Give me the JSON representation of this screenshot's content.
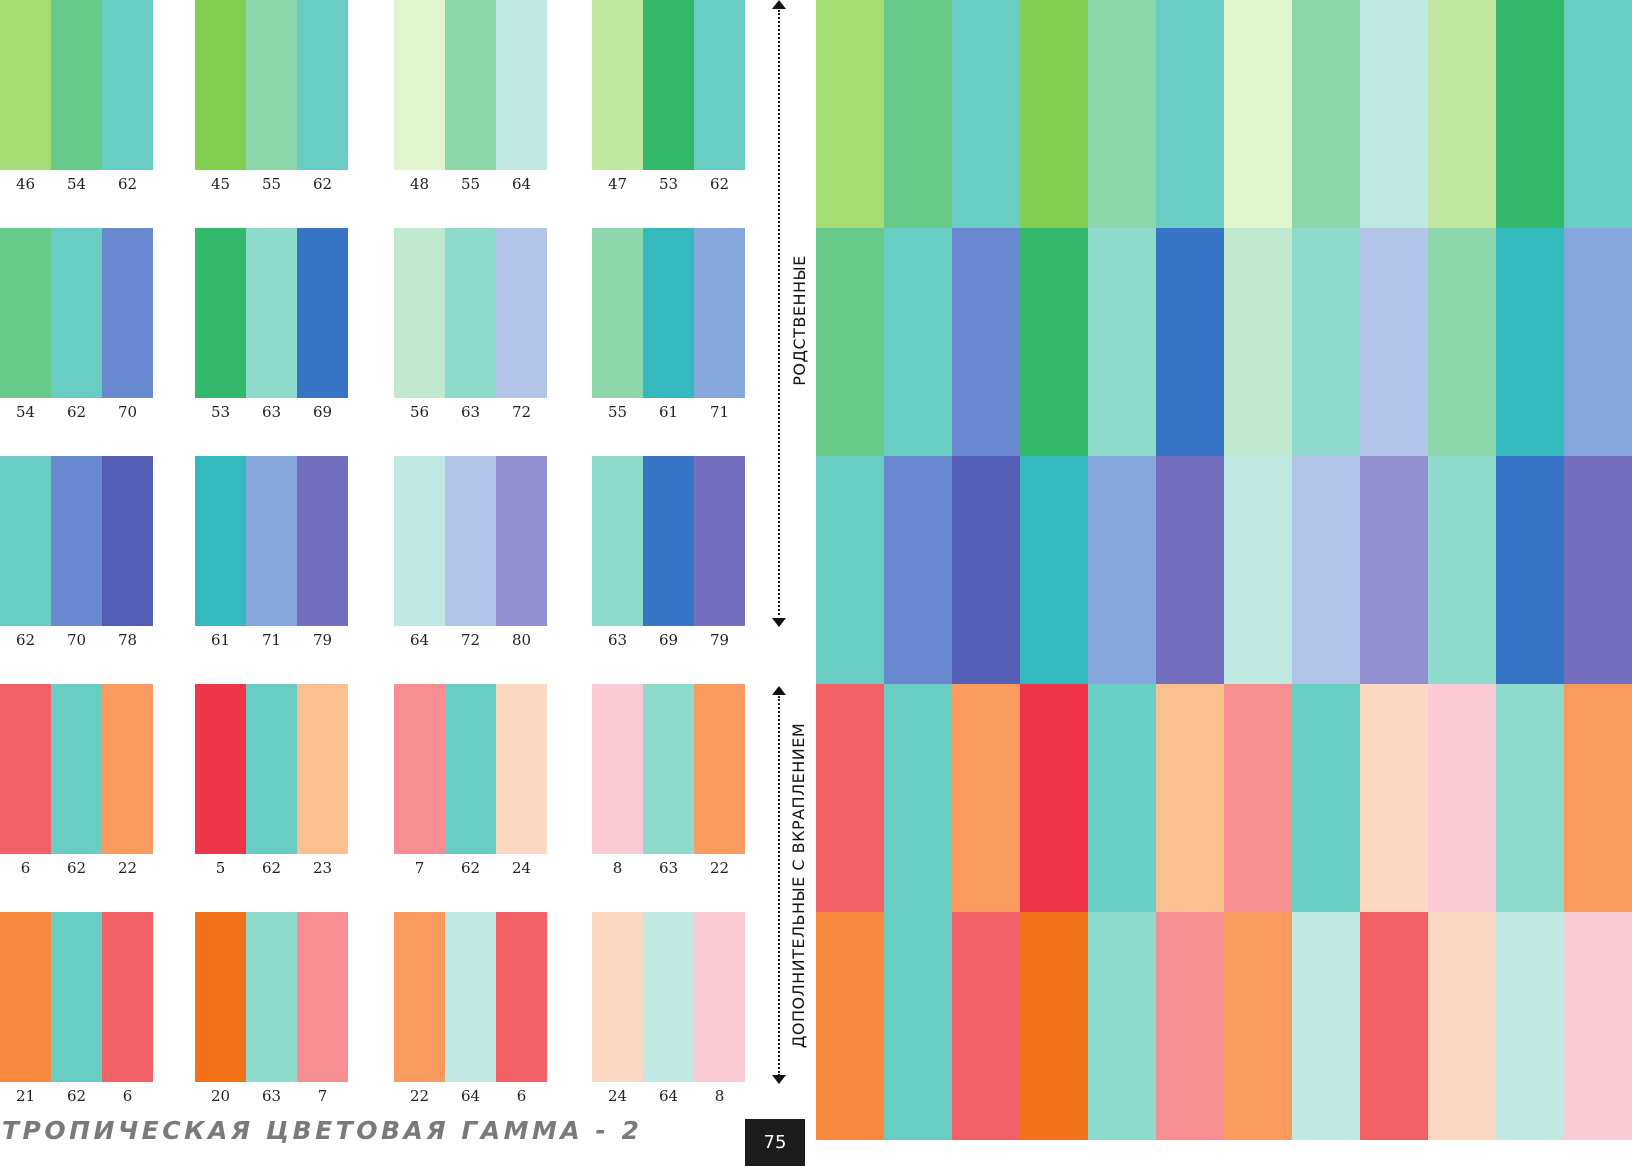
{
  "palette_rows": [
    [
      {
        "colors": [
          "#a7dd75",
          "#67c98a",
          "#69cdc4"
        ],
        "numbers": [
          "46",
          "54",
          "62"
        ]
      },
      {
        "colors": [
          "#82cf51",
          "#8ed7ad",
          "#69cdc4"
        ],
        "numbers": [
          "45",
          "55",
          "62"
        ]
      },
      {
        "colors": [
          "#e1f4d0",
          "#8ed7ad",
          "#c0e9e4"
        ],
        "numbers": [
          "48",
          "55",
          "64"
        ]
      },
      {
        "colors": [
          "#c0e6a0",
          "#34b96c",
          "#69cdc4"
        ],
        "numbers": [
          "47",
          "53",
          "62"
        ]
      }
    ],
    [
      {
        "colors": [
          "#67c98a",
          "#69cdc4",
          "#6888cf"
        ],
        "numbers": [
          "54",
          "62",
          "70"
        ]
      },
      {
        "colors": [
          "#34b96c",
          "#8edbcb",
          "#3874c5"
        ],
        "numbers": [
          "53",
          "63",
          "69"
        ]
      },
      {
        "colors": [
          "#c0e9cf",
          "#8edbcb",
          "#b2c5e9"
        ],
        "numbers": [
          "56",
          "63",
          "72"
        ]
      },
      {
        "colors": [
          "#8ed7ad",
          "#34b9bf",
          "#86a7dc"
        ],
        "numbers": [
          "55",
          "61",
          "71"
        ]
      }
    ],
    [
      {
        "colors": [
          "#69cdc4",
          "#6888cf",
          "#545eb5"
        ],
        "numbers": [
          "62",
          "70",
          "78"
        ]
      },
      {
        "colors": [
          "#34b9bf",
          "#86a7dc",
          "#736fbe"
        ],
        "numbers": [
          "61",
          "71",
          "79"
        ]
      },
      {
        "colors": [
          "#c0e9e4",
          "#b2c5e9",
          "#918fcf"
        ],
        "numbers": [
          "64",
          "72",
          "80"
        ]
      },
      {
        "colors": [
          "#8edbcb",
          "#3874c5",
          "#736fbe"
        ],
        "numbers": [
          "63",
          "69",
          "79"
        ]
      }
    ],
    [
      {
        "colors": [
          "#f26068",
          "#69cdc4",
          "#f99b5e"
        ],
        "numbers": [
          "6",
          "62",
          "22"
        ]
      },
      {
        "colors": [
          "#ef3649",
          "#69cdc4",
          "#fbc08f"
        ],
        "numbers": [
          "5",
          "62",
          "23"
        ]
      },
      {
        "colors": [
          "#f78e92",
          "#69cdc4",
          "#fbd8c1"
        ],
        "numbers": [
          "7",
          "62",
          "24"
        ]
      },
      {
        "colors": [
          "#facbd5",
          "#8edbcb",
          "#f99b5e"
        ],
        "numbers": [
          "8",
          "63",
          "22"
        ]
      }
    ],
    [
      {
        "colors": [
          "#f6893e",
          "#69cdc4",
          "#f26068"
        ],
        "numbers": [
          "21",
          "62",
          "6"
        ]
      },
      {
        "colors": [
          "#f27119",
          "#8edbcb",
          "#f78e92"
        ],
        "numbers": [
          "20",
          "63",
          "7"
        ]
      },
      {
        "colors": [
          "#f99b5e",
          "#c0e9e4",
          "#f26068"
        ],
        "numbers": [
          "22",
          "64",
          "6"
        ]
      },
      {
        "colors": [
          "#fbd8c1",
          "#c0e9e4",
          "#facbd5"
        ],
        "numbers": [
          "24",
          "64",
          "8"
        ]
      }
    ]
  ],
  "labels": {
    "related": "РОДСТВЕННЫЕ",
    "complementary": "ДОПОЛНИТЕЛЬНЫЕ С ВКРАПЛЕНИЕМ"
  },
  "footer": {
    "title": "ТРОПИЧЕСКАЯ ЦВЕТОВАЯ ГАММА - 2",
    "page_number": "75"
  }
}
